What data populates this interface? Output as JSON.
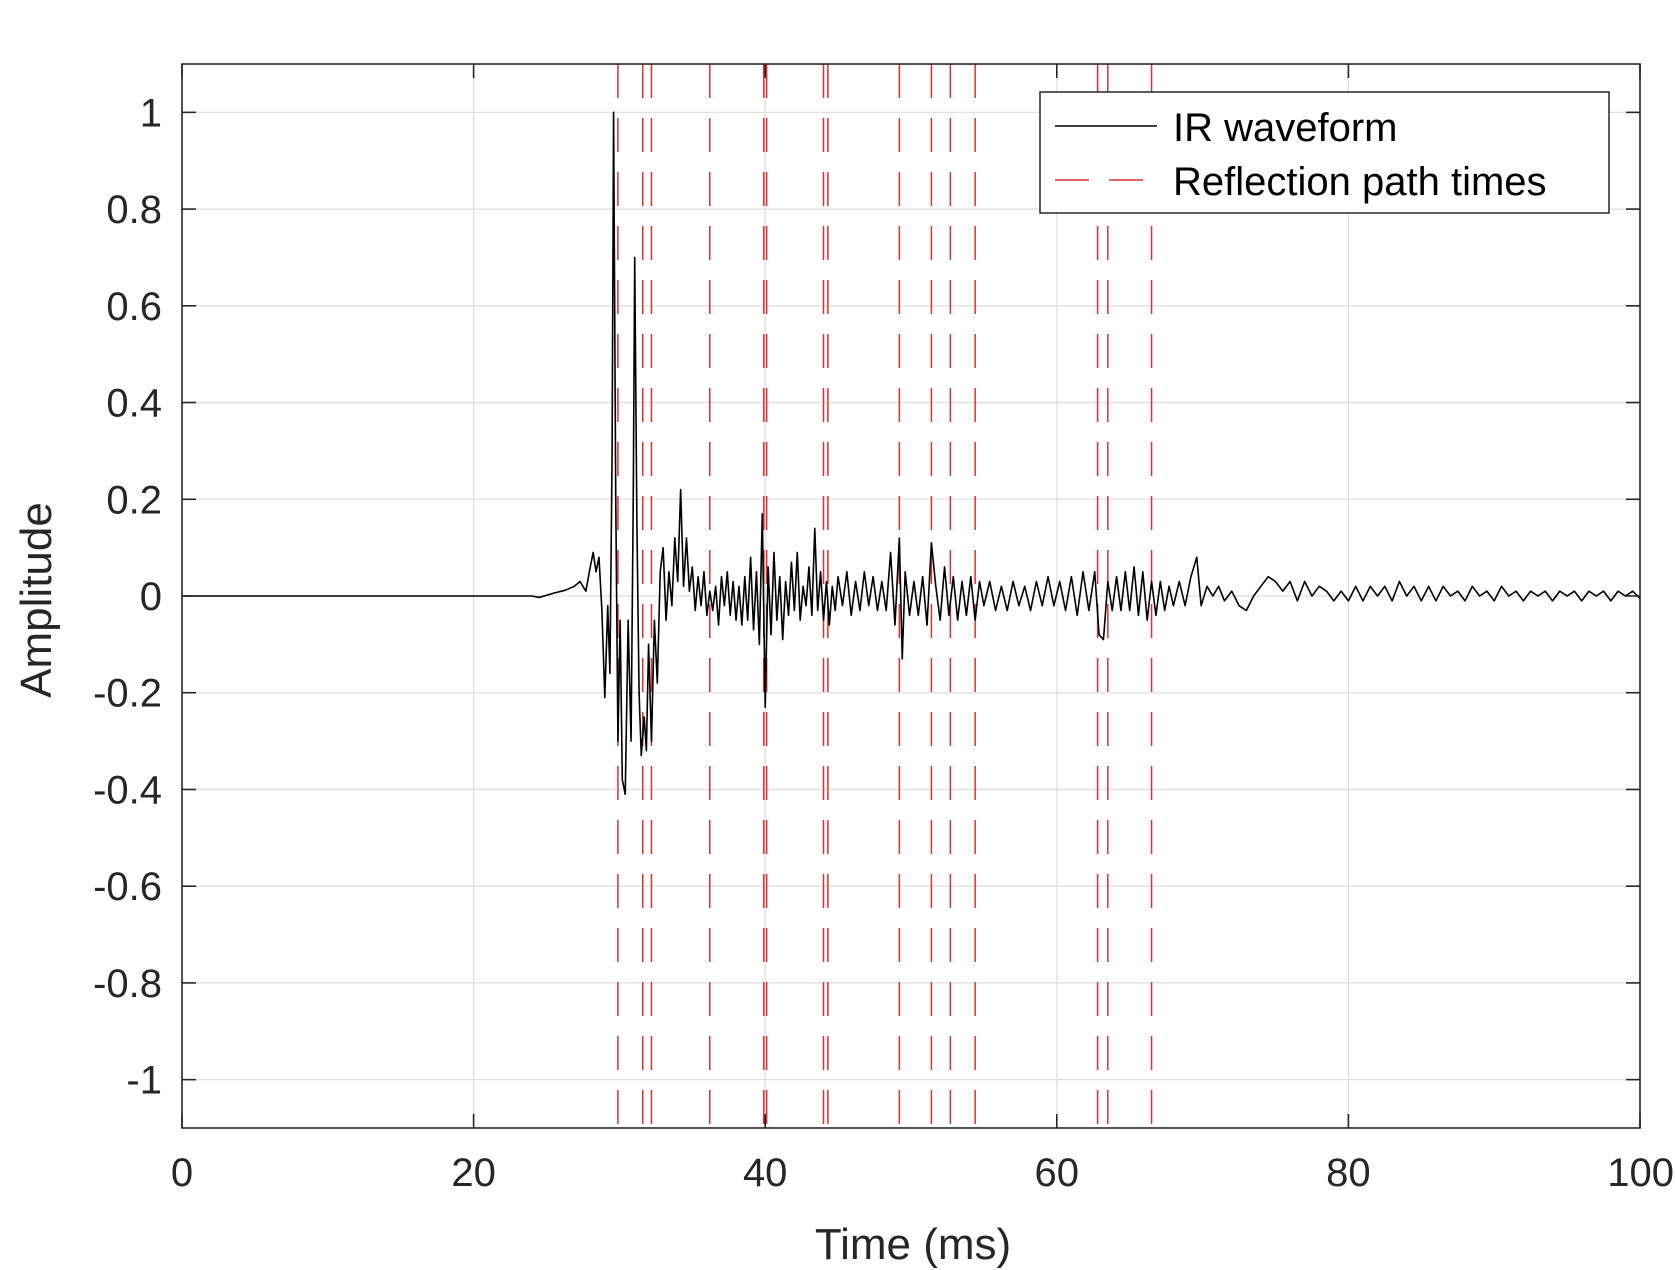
{
  "chart_data": {
    "type": "line",
    "title": "",
    "xlabel": "Time (ms)",
    "ylabel": "Amplitude",
    "xlim": [
      0,
      100
    ],
    "ylim": [
      -1.1,
      1.1
    ],
    "xticks": [
      0,
      20,
      40,
      60,
      80,
      100
    ],
    "xtick_labels": [
      "0",
      "20",
      "40",
      "60",
      "80",
      "100"
    ],
    "yticks": [
      1,
      0.8,
      0.6,
      0.4,
      0.2,
      0,
      -0.2,
      -0.4,
      -0.6,
      -0.8,
      -1
    ],
    "ytick_labels": [
      "1",
      "0.8",
      "0.6",
      "0.4",
      "0.2",
      "0",
      "-0.2",
      "-0.4",
      "-0.6",
      "-0.8",
      "-1"
    ],
    "grid": true,
    "legend_position": "top-right",
    "series": [
      {
        "name": "IR waveform",
        "style": "solid",
        "color": "#000000",
        "points": [
          [
            0,
            0
          ],
          [
            24.0,
            0
          ],
          [
            24.5,
            -0.003
          ],
          [
            25.5,
            0.006
          ],
          [
            26.3,
            0.012
          ],
          [
            26.9,
            0.02
          ],
          [
            27.3,
            0.03
          ],
          [
            27.7,
            0.01
          ],
          [
            28.0,
            0.06
          ],
          [
            28.2,
            0.09
          ],
          [
            28.4,
            0.05
          ],
          [
            28.6,
            0.08
          ],
          [
            28.8,
            -0.03
          ],
          [
            29.0,
            -0.21
          ],
          [
            29.2,
            -0.02
          ],
          [
            29.35,
            -0.16
          ],
          [
            29.5,
            0.3
          ],
          [
            29.6,
            1.0
          ],
          [
            29.75,
            0.2
          ],
          [
            29.9,
            -0.3
          ],
          [
            30.05,
            -0.05
          ],
          [
            30.2,
            -0.38
          ],
          [
            30.4,
            -0.41
          ],
          [
            30.6,
            -0.05
          ],
          [
            30.8,
            -0.3
          ],
          [
            30.95,
            0.2
          ],
          [
            31.05,
            0.7
          ],
          [
            31.2,
            0.15
          ],
          [
            31.35,
            -0.2
          ],
          [
            31.5,
            -0.33
          ],
          [
            31.7,
            -0.25
          ],
          [
            31.85,
            -0.32
          ],
          [
            32.0,
            -0.1
          ],
          [
            32.2,
            -0.3
          ],
          [
            32.4,
            -0.05
          ],
          [
            32.6,
            -0.18
          ],
          [
            32.8,
            0.05
          ],
          [
            33.0,
            0.1
          ],
          [
            33.2,
            -0.05
          ],
          [
            33.4,
            0.05
          ],
          [
            33.6,
            -0.02
          ],
          [
            33.8,
            0.12
          ],
          [
            34.0,
            0.03
          ],
          [
            34.2,
            0.22
          ],
          [
            34.4,
            0.02
          ],
          [
            34.6,
            0.12
          ],
          [
            34.8,
            0.01
          ],
          [
            35.0,
            0.06
          ],
          [
            35.2,
            -0.03
          ],
          [
            35.4,
            0.04
          ],
          [
            35.6,
            -0.02
          ],
          [
            35.8,
            0.05
          ],
          [
            36.0,
            -0.04
          ],
          [
            36.2,
            0.01
          ],
          [
            36.4,
            -0.03
          ],
          [
            36.6,
            0.02
          ],
          [
            36.8,
            -0.06
          ],
          [
            37.0,
            0.04
          ],
          [
            37.2,
            -0.02
          ],
          [
            37.4,
            0.05
          ],
          [
            37.6,
            -0.04
          ],
          [
            37.8,
            0.03
          ],
          [
            38.0,
            -0.05
          ],
          [
            38.2,
            0.02
          ],
          [
            38.4,
            -0.06
          ],
          [
            38.6,
            0.04
          ],
          [
            38.8,
            -0.05
          ],
          [
            39.0,
            0.08
          ],
          [
            39.2,
            -0.07
          ],
          [
            39.4,
            0.05
          ],
          [
            39.6,
            -0.1
          ],
          [
            39.8,
            0.17
          ],
          [
            40.0,
            -0.23
          ],
          [
            40.2,
            0.06
          ],
          [
            40.4,
            -0.08
          ],
          [
            40.6,
            0.09
          ],
          [
            40.8,
            -0.05
          ],
          [
            41.0,
            0.04
          ],
          [
            41.2,
            -0.09
          ],
          [
            41.4,
            0.03
          ],
          [
            41.6,
            -0.04
          ],
          [
            41.8,
            0.07
          ],
          [
            42.0,
            -0.03
          ],
          [
            42.2,
            0.09
          ],
          [
            42.4,
            -0.05
          ],
          [
            42.6,
            0.02
          ],
          [
            42.8,
            -0.02
          ],
          [
            43.0,
            0.06
          ],
          [
            43.2,
            -0.04
          ],
          [
            43.4,
            0.14
          ],
          [
            43.6,
            -0.03
          ],
          [
            43.8,
            0.05
          ],
          [
            44.0,
            -0.05
          ],
          [
            44.2,
            0.03
          ],
          [
            44.4,
            -0.06
          ],
          [
            44.6,
            0.02
          ],
          [
            44.8,
            -0.03
          ],
          [
            45.0,
            0.04
          ],
          [
            45.3,
            -0.02
          ],
          [
            45.6,
            0.05
          ],
          [
            45.9,
            -0.04
          ],
          [
            46.2,
            0.03
          ],
          [
            46.5,
            -0.03
          ],
          [
            46.8,
            0.05
          ],
          [
            47.1,
            -0.02
          ],
          [
            47.4,
            0.04
          ],
          [
            47.7,
            -0.03
          ],
          [
            48.0,
            0.03
          ],
          [
            48.3,
            -0.03
          ],
          [
            48.6,
            0.09
          ],
          [
            48.9,
            -0.06
          ],
          [
            49.2,
            0.12
          ],
          [
            49.4,
            -0.13
          ],
          [
            49.6,
            0.05
          ],
          [
            49.9,
            -0.04
          ],
          [
            50.2,
            0.03
          ],
          [
            50.5,
            -0.04
          ],
          [
            50.8,
            0.04
          ],
          [
            51.1,
            -0.06
          ],
          [
            51.4,
            0.11
          ],
          [
            51.7,
            0.02
          ],
          [
            52.0,
            -0.05
          ],
          [
            52.3,
            0.06
          ],
          [
            52.6,
            -0.04
          ],
          [
            52.9,
            0.04
          ],
          [
            53.2,
            -0.05
          ],
          [
            53.5,
            0.03
          ],
          [
            53.8,
            -0.04
          ],
          [
            54.1,
            0.04
          ],
          [
            54.4,
            -0.05
          ],
          [
            54.7,
            0.03
          ],
          [
            55.0,
            -0.02
          ],
          [
            55.4,
            0.03
          ],
          [
            55.8,
            -0.03
          ],
          [
            56.2,
            0.02
          ],
          [
            56.6,
            -0.03
          ],
          [
            57.0,
            0.03
          ],
          [
            57.4,
            -0.02
          ],
          [
            57.8,
            0.02
          ],
          [
            58.2,
            -0.03
          ],
          [
            58.6,
            0.03
          ],
          [
            59.0,
            -0.02
          ],
          [
            59.4,
            0.04
          ],
          [
            59.8,
            -0.02
          ],
          [
            60.2,
            0.03
          ],
          [
            60.6,
            -0.03
          ],
          [
            61.0,
            0.04
          ],
          [
            61.4,
            -0.04
          ],
          [
            61.8,
            0.05
          ],
          [
            62.2,
            -0.03
          ],
          [
            62.6,
            0.05
          ],
          [
            62.9,
            -0.08
          ],
          [
            63.2,
            -0.09
          ],
          [
            63.5,
            0.03
          ],
          [
            63.8,
            -0.03
          ],
          [
            64.1,
            0.04
          ],
          [
            64.4,
            -0.03
          ],
          [
            64.7,
            0.05
          ],
          [
            65.0,
            -0.03
          ],
          [
            65.3,
            0.06
          ],
          [
            65.6,
            -0.04
          ],
          [
            65.9,
            0.05
          ],
          [
            66.2,
            -0.05
          ],
          [
            66.5,
            0.03
          ],
          [
            66.8,
            -0.04
          ],
          [
            67.1,
            0.03
          ],
          [
            67.4,
            -0.03
          ],
          [
            67.7,
            0.02
          ],
          [
            68.0,
            -0.02
          ],
          [
            68.4,
            0.03
          ],
          [
            68.8,
            -0.02
          ],
          [
            69.2,
            0.04
          ],
          [
            69.6,
            0.08
          ],
          [
            69.9,
            -0.02
          ],
          [
            70.3,
            0.02
          ],
          [
            70.7,
            0.0
          ],
          [
            71.1,
            0.02
          ],
          [
            71.5,
            -0.01
          ],
          [
            72.0,
            0.01
          ],
          [
            72.5,
            -0.02
          ],
          [
            73.0,
            -0.03
          ],
          [
            73.5,
            0.0
          ],
          [
            74.0,
            0.02
          ],
          [
            74.5,
            0.04
          ],
          [
            75.0,
            0.03
          ],
          [
            75.5,
            0.01
          ],
          [
            76.0,
            0.03
          ],
          [
            76.5,
            -0.01
          ],
          [
            77.0,
            0.03
          ],
          [
            77.5,
            0.0
          ],
          [
            78.0,
            0.02
          ],
          [
            78.5,
            0.01
          ],
          [
            79.0,
            -0.01
          ],
          [
            79.5,
            0.01
          ],
          [
            80.0,
            -0.01
          ],
          [
            80.5,
            0.02
          ],
          [
            81.0,
            -0.01
          ],
          [
            81.5,
            0.02
          ],
          [
            82.0,
            0.0
          ],
          [
            82.5,
            0.02
          ],
          [
            83.0,
            -0.01
          ],
          [
            83.5,
            0.03
          ],
          [
            84.0,
            0.0
          ],
          [
            84.5,
            0.02
          ],
          [
            85.0,
            -0.01
          ],
          [
            85.5,
            0.02
          ],
          [
            86.0,
            -0.01
          ],
          [
            86.5,
            0.02
          ],
          [
            87.0,
            0.0
          ],
          [
            87.5,
            0.01
          ],
          [
            88.0,
            -0.01
          ],
          [
            88.5,
            0.02
          ],
          [
            89.0,
            0.0
          ],
          [
            89.5,
            0.01
          ],
          [
            90.0,
            -0.01
          ],
          [
            90.5,
            0.02
          ],
          [
            91.0,
            0.0
          ],
          [
            91.5,
            0.01
          ],
          [
            92.0,
            -0.01
          ],
          [
            92.5,
            0.01
          ],
          [
            93.0,
            0.0
          ],
          [
            93.5,
            0.01
          ],
          [
            94.0,
            -0.01
          ],
          [
            94.5,
            0.01
          ],
          [
            95.0,
            0.0
          ],
          [
            95.5,
            0.01
          ],
          [
            96.0,
            -0.01
          ],
          [
            96.5,
            0.01
          ],
          [
            97.0,
            0.0
          ],
          [
            97.5,
            0.01
          ],
          [
            98.0,
            -0.01
          ],
          [
            98.5,
            0.01
          ],
          [
            99.0,
            0.0
          ],
          [
            99.5,
            0.01
          ],
          [
            100.0,
            -0.005
          ]
        ]
      },
      {
        "name": "Reflection path times",
        "style": "dashed",
        "color": "#e0302c",
        "x": [
          29.9,
          31.6,
          32.2,
          36.2,
          39.9,
          40.1,
          44.0,
          44.3,
          49.2,
          51.4,
          52.7,
          54.4,
          62.8,
          63.5,
          66.5
        ]
      }
    ]
  }
}
